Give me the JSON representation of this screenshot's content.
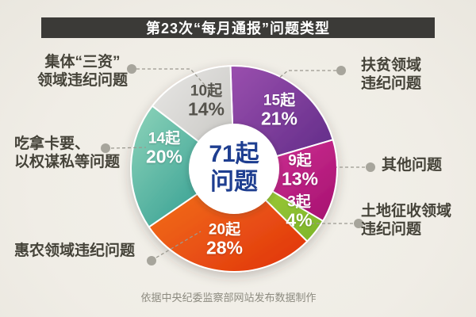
{
  "title": "第23次“每月通报”问题类型",
  "colors": {
    "title_bar": "#3b3a37",
    "background": "#f0ede6",
    "center_text": "#1e3e90",
    "callout_text": "#454339",
    "connector": "#9b9990",
    "dot": "#a7a59c"
  },
  "chart_data": {
    "type": "pie",
    "subtype": "donut",
    "title": "第23次“每月通报”问题类型",
    "total_label": "71起\n问题",
    "total_count": 71,
    "unit": "起",
    "start_angle_deg": -2,
    "legend_position": "callouts",
    "slices": [
      {
        "label": "扶贫领域违纪问题",
        "count": 15,
        "pct": 21,
        "count_label": "15起",
        "pct_label": "21%",
        "color_light": "#9a4fae",
        "color_dark": "#5e2a86"
      },
      {
        "label": "其他问题",
        "count": 9,
        "pct": 13,
        "count_label": "9起",
        "pct_label": "13%",
        "color_light": "#d6379a",
        "color_dark": "#a5106f"
      },
      {
        "label": "土地征收领域违纪问题",
        "count": 3,
        "pct": 4,
        "count_label": "3起",
        "pct_label": "4%",
        "color_light": "#a8cf3b",
        "color_dark": "#7cb52a"
      },
      {
        "label": "惠农领域违纪问题",
        "count": 20,
        "pct": 28,
        "count_label": "20起",
        "pct_label": "28%",
        "color_light": "#f4771d",
        "color_dark": "#e0320c"
      },
      {
        "label": "吃拿卡要、以权谋私等问题",
        "count": 14,
        "pct": 20,
        "count_label": "14起",
        "pct_label": "20%",
        "color_light": "#8ed4ba",
        "color_dark": "#23948a"
      },
      {
        "label": "集体“三资”领域违纪问题",
        "count": 10,
        "pct": 14,
        "count_label": "10起",
        "pct_label": "14%",
        "color_light": "#e8e7e5",
        "color_dark": "#c5c4c0"
      }
    ]
  },
  "callouts": {
    "top_left": "集体“三资”\n领域违纪问题",
    "mid_left": "吃拿卡要、\n以权谋私等问题",
    "bottom_left": "惠农领域违纪问题",
    "top_right": "扶贫领域\n违纪问题",
    "mid_right": "其他问题",
    "bottom_right": "土地征收领域\n违纪问题"
  },
  "source_note": "依据中央纪委监察部网站发布数据制作"
}
